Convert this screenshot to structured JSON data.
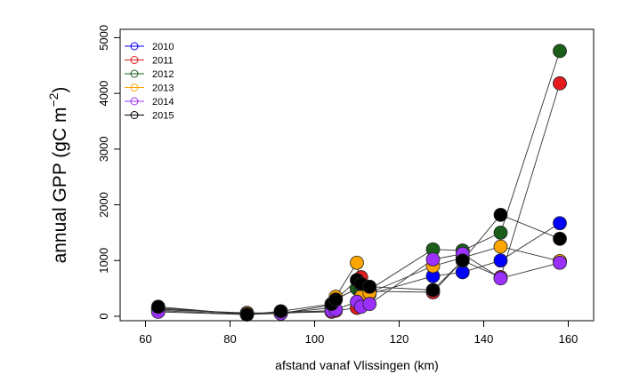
{
  "chart_data": {
    "type": "line",
    "xlabel": "afstand vanaf Vlissingen (km)",
    "ylabel": "annual GPP (gC m",
    "ylabel_exponent": "−2",
    "ylabel_close": ")",
    "xlim": [
      54,
      166
    ],
    "ylim": [
      -80,
      5150
    ],
    "x_ticks": [
      60,
      80,
      100,
      120,
      140,
      160
    ],
    "y_ticks": [
      0,
      1000,
      2000,
      3000,
      4000,
      5000
    ],
    "legend_position": "top-left",
    "series": [
      {
        "name": "2010",
        "color": "#0000ff",
        "points": [
          [
            63,
            100
          ],
          [
            84,
            40
          ],
          [
            92,
            70
          ],
          [
            104,
            100
          ],
          [
            105,
            300
          ],
          [
            110,
            500
          ],
          [
            111,
            400
          ],
          [
            113,
            400
          ],
          [
            128,
            720
          ],
          [
            135,
            790
          ],
          [
            144,
            1000
          ],
          [
            158,
            1670
          ]
        ]
      },
      {
        "name": "2011",
        "color": "#e41a1c",
        "points": [
          [
            63,
            120
          ],
          [
            84,
            60
          ],
          [
            92,
            60
          ],
          [
            104,
            80
          ],
          [
            105,
            100
          ],
          [
            110,
            150
          ],
          [
            111,
            700
          ],
          [
            113,
            450
          ],
          [
            128,
            430
          ],
          [
            135,
            1000
          ],
          [
            144,
            700
          ],
          [
            158,
            4180
          ]
        ]
      },
      {
        "name": "2012",
        "color": "#1a5e1a",
        "points": [
          [
            63,
            150
          ],
          [
            84,
            40
          ],
          [
            92,
            50
          ],
          [
            104,
            200
          ],
          [
            105,
            300
          ],
          [
            110,
            500
          ],
          [
            111,
            450
          ],
          [
            113,
            480
          ],
          [
            128,
            1200
          ],
          [
            135,
            1180
          ],
          [
            144,
            1500
          ],
          [
            158,
            4760
          ]
        ]
      },
      {
        "name": "2013",
        "color": "#ffa500",
        "points": [
          [
            63,
            130
          ],
          [
            84,
            50
          ],
          [
            92,
            60
          ],
          [
            104,
            150
          ],
          [
            105,
            350
          ],
          [
            110,
            960
          ],
          [
            111,
            350
          ],
          [
            113,
            420
          ],
          [
            128,
            900
          ],
          [
            135,
            1050
          ],
          [
            144,
            1250
          ],
          [
            158,
            990
          ]
        ]
      },
      {
        "name": "2014",
        "color": "#9b30ff",
        "points": [
          [
            63,
            80
          ],
          [
            84,
            30
          ],
          [
            92,
            50
          ],
          [
            104,
            100
          ],
          [
            105,
            120
          ],
          [
            110,
            260
          ],
          [
            111,
            170
          ],
          [
            113,
            220
          ],
          [
            128,
            1020
          ],
          [
            135,
            1120
          ],
          [
            144,
            680
          ],
          [
            158,
            960
          ]
        ]
      },
      {
        "name": "2015",
        "color": "#000000",
        "points": [
          [
            63,
            170
          ],
          [
            84,
            30
          ],
          [
            92,
            90
          ],
          [
            104,
            220
          ],
          [
            105,
            300
          ],
          [
            110,
            650
          ],
          [
            111,
            580
          ],
          [
            113,
            530
          ],
          [
            128,
            470
          ],
          [
            135,
            1000
          ],
          [
            144,
            1820
          ],
          [
            158,
            1390
          ]
        ]
      }
    ]
  }
}
